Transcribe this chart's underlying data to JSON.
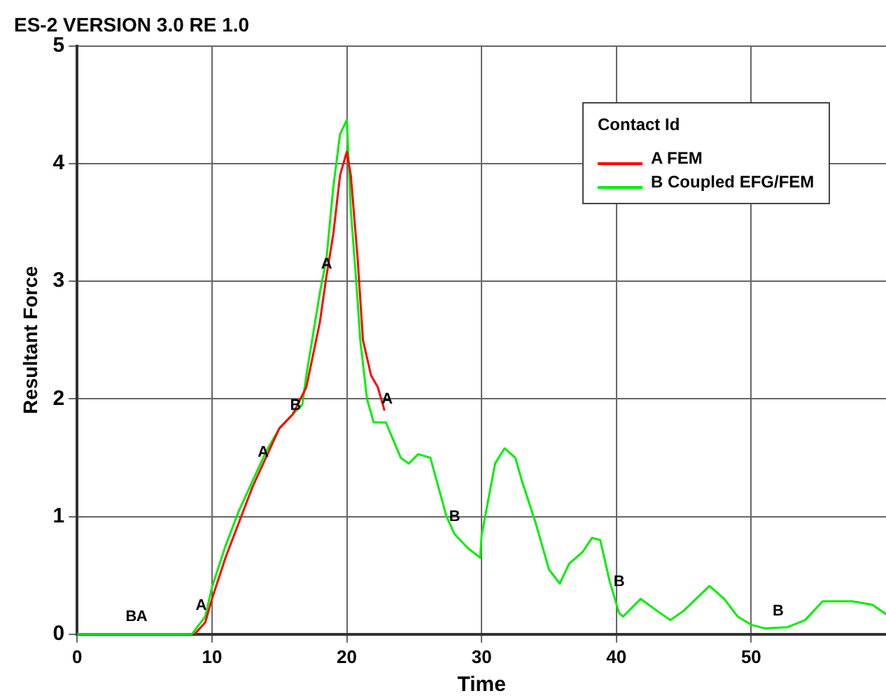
{
  "chart_data": {
    "type": "line",
    "title": "ES-2 VERSION 3.0 RE 1.0",
    "xlabel": "Time",
    "ylabel": "Resultant Force",
    "legend_title": "Contact Id",
    "legend": "top right",
    "grid": true,
    "marker": "none",
    "line_style": "solid",
    "xlim": [
      0,
      60
    ],
    "xticks": [
      0,
      10,
      20,
      30,
      40,
      50
    ],
    "ylim": [
      0,
      5
    ],
    "yticks": [
      0,
      1,
      2,
      3,
      4,
      5
    ],
    "series": [
      {
        "name": "A FEM",
        "color": "#ff0000",
        "x": [
          8.7,
          9.5,
          10,
          11,
          12,
          13,
          14,
          15,
          16,
          17,
          18,
          18.5,
          19,
          19.5,
          20,
          20.3,
          20.8,
          21.2,
          21.8,
          22.3,
          22.8
        ],
        "values": [
          0,
          0.1,
          0.3,
          0.65,
          0.95,
          1.25,
          1.5,
          1.75,
          1.87,
          2.1,
          2.65,
          3.05,
          3.4,
          3.9,
          4.1,
          3.9,
          3.2,
          2.5,
          2.2,
          2.1,
          1.9
        ]
      },
      {
        "name": "B Coupled EFG/FEM",
        "color": "#00ee00",
        "x": [
          0,
          8.5,
          9.5,
          10,
          11,
          12,
          13,
          14,
          15,
          16,
          16.7,
          17,
          18,
          18.5,
          19,
          19.5,
          20,
          20.3,
          20.7,
          21,
          21.5,
          22,
          22.9,
          24,
          24.6,
          25.3,
          26.2,
          27.4,
          28,
          29,
          29.9,
          30,
          31,
          31.7,
          32.5,
          33,
          34,
          35,
          35.8,
          36.5,
          37.5,
          38.2,
          38.8,
          39.5,
          40.2,
          40.5,
          41.8,
          43,
          44,
          45,
          46.9,
          48,
          49,
          50,
          51,
          52.7,
          54,
          55.3,
          57.5,
          59,
          60
        ],
        "values": [
          0,
          0,
          0.15,
          0.4,
          0.75,
          1.05,
          1.3,
          1.55,
          1.75,
          1.87,
          1.95,
          2.2,
          2.9,
          3.2,
          3.8,
          4.25,
          4.37,
          3.6,
          3.0,
          2.5,
          2.0,
          1.8,
          1.8,
          1.5,
          1.45,
          1.53,
          1.5,
          1.0,
          0.85,
          0.73,
          0.65,
          0.84,
          1.45,
          1.58,
          1.5,
          1.3,
          0.95,
          0.55,
          0.43,
          0.6,
          0.7,
          0.82,
          0.8,
          0.45,
          0.18,
          0.15,
          0.3,
          0.2,
          0.12,
          0.2,
          0.41,
          0.3,
          0.15,
          0.08,
          0.05,
          0.06,
          0.12,
          0.28,
          0.28,
          0.25,
          0.17
        ]
      }
    ],
    "annotations": [
      {
        "text": "B",
        "x": 4,
        "y": 0.05
      },
      {
        "text": "A",
        "x": 4.8,
        "y": 0.05
      },
      {
        "text": "A",
        "x": 9.2,
        "y": 0.15
      },
      {
        "text": "A",
        "x": 13.8,
        "y": 1.45
      },
      {
        "text": "B",
        "x": 16.2,
        "y": 1.85
      },
      {
        "text": "A",
        "x": 18.5,
        "y": 3.05
      },
      {
        "text": "A",
        "x": 23,
        "y": 1.9
      },
      {
        "text": "B",
        "x": 28,
        "y": 0.9
      },
      {
        "text": "B",
        "x": 40.2,
        "y": 0.35
      },
      {
        "text": "B",
        "x": 52,
        "y": 0.1
      }
    ]
  }
}
